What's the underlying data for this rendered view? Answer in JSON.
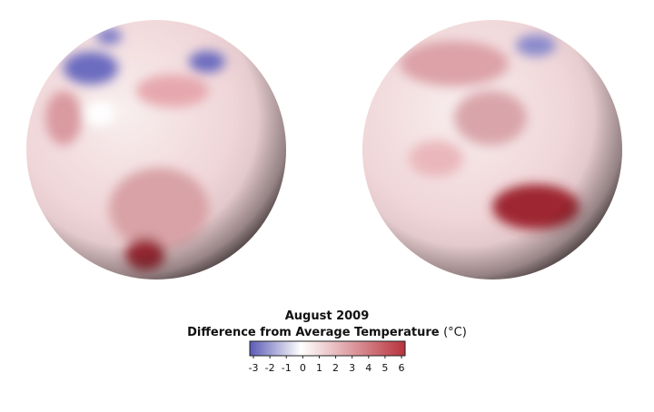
{
  "legend": {
    "title": "August 2009",
    "subtitle": "Difference from Average Temperature",
    "unit": "(°C)",
    "ticks": [
      -3,
      -2,
      -1,
      0,
      1,
      2,
      3,
      4,
      5,
      6
    ]
  }
}
